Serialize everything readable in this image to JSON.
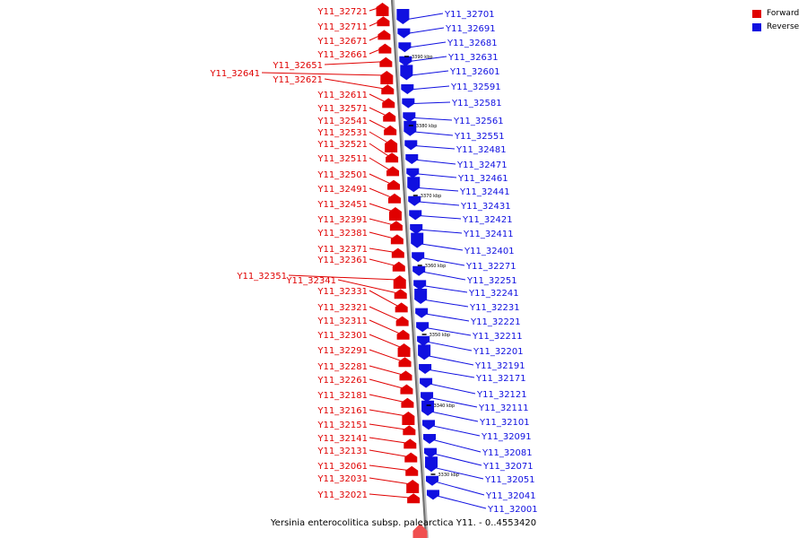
{
  "legend": {
    "forward_label": "Forward",
    "reverse_label": "Reverse",
    "forward_color": "#e00000",
    "reverse_color": "#1010e0"
  },
  "caption": "Yersinia enterocolitica subsp. palearctica Y11. - 0..4553420",
  "kbp_ticks": [
    "3390 kbp",
    "3380 kbp",
    "3370 kbp",
    "3360 kbp",
    "3350 kbp",
    "3340 kbp",
    "3330 kbp"
  ],
  "forward_genes": [
    "Y11_32721",
    "Y11_32711",
    "Y11_32671",
    "Y11_32661",
    "Y11_32651",
    "Y11_32641",
    "Y11_32621",
    "Y11_32611",
    "Y11_32571",
    "Y11_32541",
    "Y11_32531",
    "Y11_32521",
    "Y11_32511",
    "Y11_32501",
    "Y11_32491",
    "Y11_32451",
    "Y11_32391",
    "Y11_32381",
    "Y11_32371",
    "Y11_32361",
    "Y11_32351",
    "Y11_32341",
    "Y11_32331",
    "Y11_32321",
    "Y11_32311",
    "Y11_32301",
    "Y11_32291",
    "Y11_32281",
    "Y11_32261",
    "Y11_32181",
    "Y11_32161",
    "Y11_32151",
    "Y11_32141",
    "Y11_32131",
    "Y11_32061",
    "Y11_32031",
    "Y11_32021"
  ],
  "reverse_genes": [
    "Y11_32701",
    "Y11_32691",
    "Y11_32681",
    "Y11_32631",
    "Y11_32601",
    "Y11_32591",
    "Y11_32581",
    "Y11_32561",
    "Y11_32551",
    "Y11_32481",
    "Y11_32471",
    "Y11_32461",
    "Y11_32441",
    "Y11_32431",
    "Y11_32421",
    "Y11_32411",
    "Y11_32401",
    "Y11_32271",
    "Y11_32251",
    "Y11_32241",
    "Y11_32231",
    "Y11_32221",
    "Y11_32211",
    "Y11_32201",
    "Y11_32191",
    "Y11_32171",
    "Y11_32121",
    "Y11_32111",
    "Y11_32101",
    "Y11_32091",
    "Y11_32081",
    "Y11_32071",
    "Y11_32051",
    "Y11_32041",
    "Y11_32001"
  ]
}
